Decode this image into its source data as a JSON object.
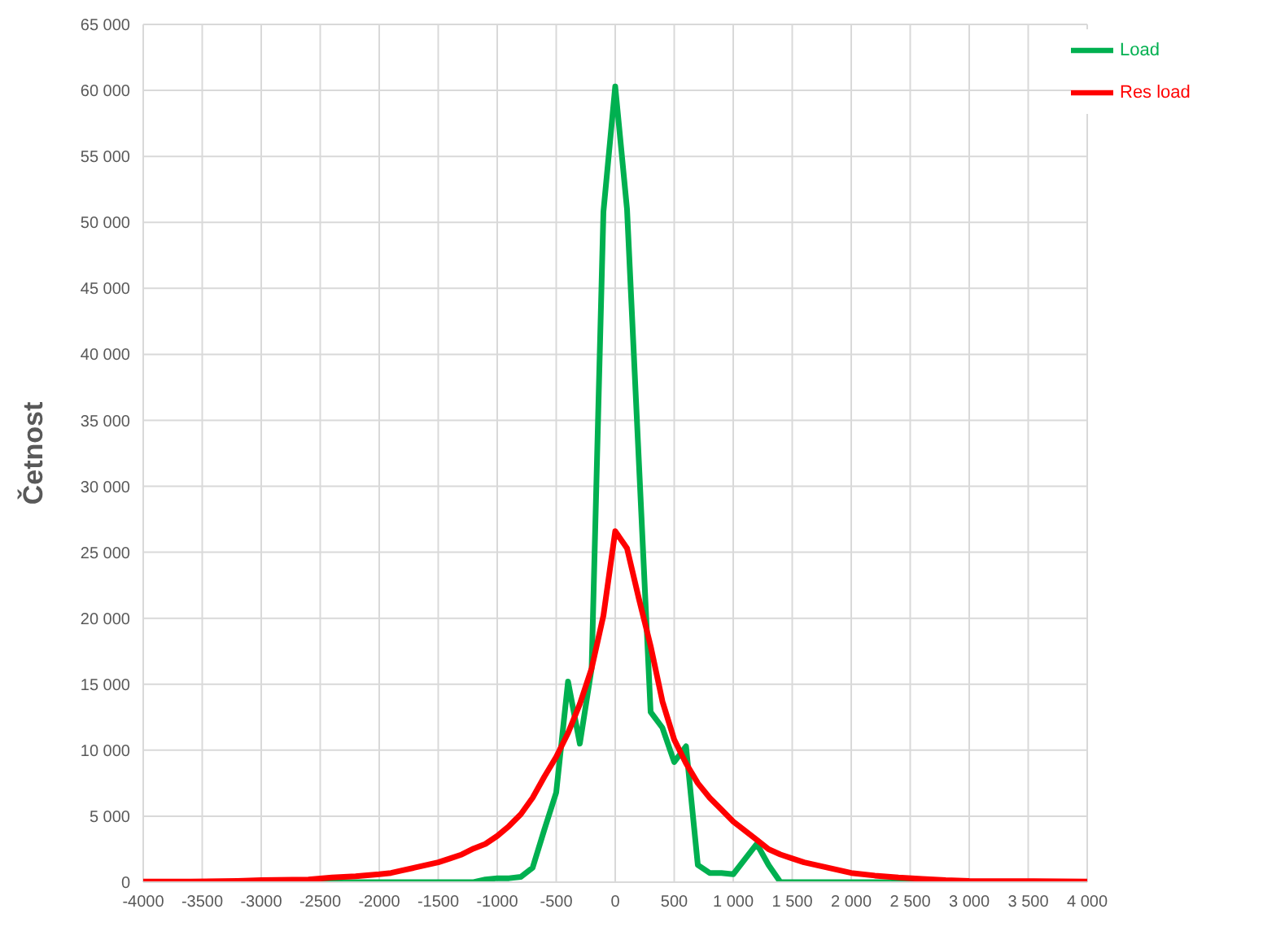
{
  "chart_data": {
    "type": "line",
    "ylabel": "Četnost",
    "xlim": [
      -4000,
      4000
    ],
    "xticks": [
      {
        "value": -4000,
        "label": "-4000"
      },
      {
        "value": -3500,
        "label": "-3500"
      },
      {
        "value": -3000,
        "label": "-3000"
      },
      {
        "value": -2500,
        "label": "-2500"
      },
      {
        "value": -2000,
        "label": "-2000"
      },
      {
        "value": -1500,
        "label": "-1500"
      },
      {
        "value": -1000,
        "label": "-1000"
      },
      -500,
      0,
      500,
      {
        "value": 1000,
        "label": "1 000"
      },
      {
        "value": 1500,
        "label": "1 500"
      },
      {
        "value": 2000,
        "label": "2 000"
      },
      {
        "value": 2500,
        "label": "2 500"
      },
      {
        "value": 3000,
        "label": "3 000"
      },
      {
        "value": 3500,
        "label": "3 500"
      },
      {
        "value": 4000,
        "label": "4 000"
      }
    ],
    "ylim": [
      0,
      65000
    ],
    "yticks": [
      0,
      {
        "value": 5000,
        "label": "5 000"
      },
      {
        "value": 10000,
        "label": "10 000"
      },
      {
        "value": 15000,
        "label": "15 000"
      },
      {
        "value": 20000,
        "label": "20 000"
      },
      {
        "value": 25000,
        "label": "25 000"
      },
      {
        "value": 30000,
        "label": "30 000"
      },
      {
        "value": 35000,
        "label": "35 000"
      },
      {
        "value": 40000,
        "label": "40 000"
      },
      {
        "value": 45000,
        "label": "45 000"
      },
      {
        "value": 50000,
        "label": "50 000"
      },
      {
        "value": 55000,
        "label": "55 000"
      },
      {
        "value": 60000,
        "label": "60 000"
      },
      {
        "value": 65000,
        "label": "65 000"
      }
    ],
    "grid": true,
    "legend": "top right",
    "marker": "none",
    "line_style": "solid",
    "series": [
      {
        "name": "Load",
        "color": "#00b050",
        "x": [
          -4000,
          -3000,
          -2000,
          -1200,
          -1100,
          -1000,
          -900,
          -800,
          -700,
          -600,
          -500,
          -400,
          -300,
          -200,
          -100,
          0,
          100,
          300,
          400,
          500,
          600,
          700,
          800,
          900,
          1000,
          1200,
          1300,
          1400,
          2000,
          3000,
          4000
        ],
        "values": [
          0,
          0,
          0,
          0,
          200,
          300,
          300,
          400,
          1100,
          4000,
          6800,
          15200,
          10500,
          16200,
          50800,
          60300,
          51000,
          12900,
          11700,
          9100,
          10300,
          1300,
          700,
          700,
          600,
          2900,
          1300,
          0,
          0,
          0,
          0
        ]
      },
      {
        "name": "Res load",
        "color": "#ff0000",
        "x": [
          -4000,
          -3600,
          -3200,
          -3000,
          -2600,
          -2400,
          -2200,
          -2000,
          -1900,
          -1800,
          -1700,
          -1600,
          -1500,
          -1400,
          -1300,
          -1200,
          -1100,
          -1000,
          -900,
          -800,
          -700,
          -600,
          -500,
          -400,
          -300,
          -200,
          -100,
          0,
          100,
          200,
          300,
          400,
          500,
          600,
          700,
          800,
          900,
          1000,
          1100,
          1200,
          1300,
          1400,
          1500,
          1600,
          1700,
          1800,
          1900,
          2000,
          2200,
          2400,
          2600,
          2800,
          3000,
          3500,
          4000
        ],
        "values": [
          50,
          50,
          100,
          150,
          200,
          350,
          450,
          600,
          700,
          900,
          1100,
          1300,
          1500,
          1800,
          2100,
          2550,
          2900,
          3500,
          4250,
          5150,
          6400,
          8000,
          9500,
          11300,
          13500,
          16200,
          20200,
          26600,
          25300,
          21500,
          17900,
          13700,
          10800,
          9000,
          7500,
          6400,
          5500,
          4600,
          3900,
          3200,
          2500,
          2100,
          1800,
          1500,
          1300,
          1100,
          900,
          700,
          500,
          350,
          250,
          150,
          100,
          80,
          50
        ]
      }
    ]
  }
}
